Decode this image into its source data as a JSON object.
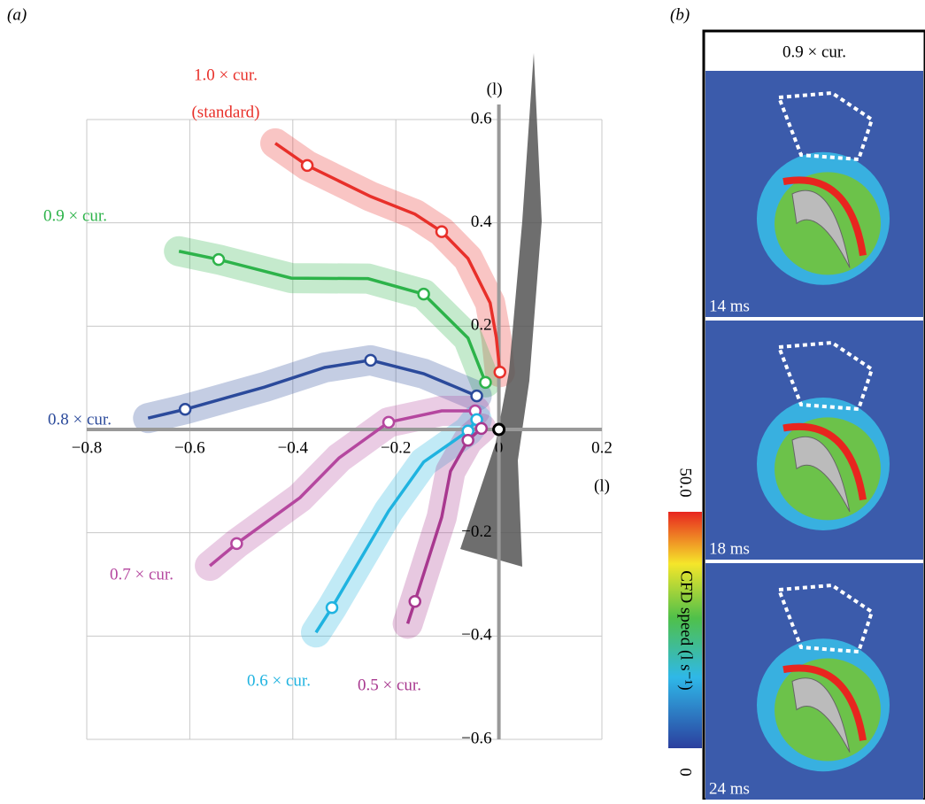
{
  "panel_labels": [
    "(a)",
    "(b)"
  ],
  "chart_data": {
    "type": "line",
    "x_label": "(l)",
    "y_label": "(l)",
    "xlim": [
      -0.8,
      0.2
    ],
    "ylim": [
      -0.6,
      0.6
    ],
    "xticks": [
      {
        "value": -0.8,
        "label": "−0.8"
      },
      {
        "value": -0.6,
        "label": "−0.6"
      },
      {
        "value": -0.4,
        "label": "−0.4"
      },
      {
        "value": -0.2,
        "label": "−0.2"
      },
      0,
      0.2
    ],
    "yticks": [
      {
        "value": -0.6,
        "label": "−0.6"
      },
      {
        "value": -0.4,
        "label": "−0.4"
      },
      {
        "value": -0.2,
        "label": "−0.2"
      },
      0.2,
      0.4,
      0.6
    ],
    "grid": true,
    "note": "(standard)",
    "series": [
      {
        "name": "1.0 × cur.",
        "color": "#e8302a",
        "x": [
          -0.434,
          -0.372,
          -0.249,
          -0.163,
          -0.111,
          -0.06,
          -0.017,
          -0.005,
          0.002
        ],
        "values": [
          0.554,
          0.511,
          0.451,
          0.417,
          0.383,
          0.331,
          0.245,
          0.178,
          0.111
        ]
      },
      {
        "name": "0.9 × cur.",
        "color": "#2db34a",
        "x": [
          -0.621,
          -0.544,
          -0.403,
          -0.254,
          -0.146,
          -0.06,
          -0.026
        ],
        "values": [
          0.345,
          0.329,
          0.293,
          0.292,
          0.262,
          0.177,
          0.091
        ]
      },
      {
        "name": "0.8 × cur.",
        "color": "#2b4a9b",
        "x": [
          -0.681,
          -0.609,
          -0.455,
          -0.338,
          -0.249,
          -0.146,
          -0.043
        ],
        "values": [
          0.022,
          0.039,
          0.082,
          0.12,
          0.134,
          0.108,
          0.065
        ]
      },
      {
        "name": "0.7 × cur.",
        "color": "#b5479f",
        "x": [
          -0.561,
          -0.509,
          -0.386,
          -0.31,
          -0.214,
          -0.111,
          -0.046
        ],
        "values": [
          -0.264,
          -0.221,
          -0.132,
          -0.055,
          0.014,
          0.036,
          0.036
        ]
      },
      {
        "name": "0.6 × cur.",
        "color": "#1fb3e0",
        "x": [
          -0.355,
          -0.324,
          -0.214,
          -0.146,
          -0.06,
          -0.043
        ],
        "values": [
          -0.393,
          -0.345,
          -0.158,
          -0.063,
          -0.003,
          0.019
        ]
      },
      {
        "name": "0.5 × cur.",
        "color": "#a8388f",
        "x": [
          -0.177,
          -0.163,
          -0.111,
          -0.094,
          -0.06,
          -0.034
        ],
        "values": [
          -0.376,
          -0.333,
          -0.17,
          -0.081,
          -0.021,
          0.002
        ]
      }
    ]
  },
  "panel_b": {
    "title": "0.9 × cur.",
    "frames": [
      "14 ms",
      "18 ms",
      "24 ms"
    ],
    "colorbar": {
      "label": "CFD speed (l s⁻¹)",
      "max": "50.0",
      "min": "0"
    }
  }
}
